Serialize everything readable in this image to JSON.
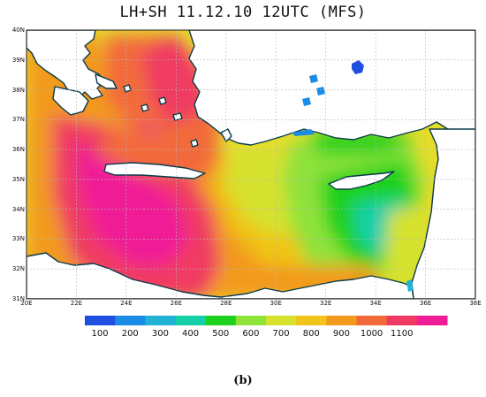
{
  "title": "LH+SH 11.12.10 12UTC (MFS)",
  "panel_label": "(b)",
  "lat_labels": [
    "40N",
    "39N",
    "38N",
    "37N",
    "36N",
    "35N",
    "34N",
    "33N",
    "32N",
    "31N"
  ],
  "lon_labels": [
    "20E",
    "22E",
    "24E",
    "26E",
    "28E",
    "30E",
    "32E",
    "34E",
    "36E",
    "38E"
  ],
  "colorbar": {
    "colors": [
      "#1f4fe0",
      "#1a8ce6",
      "#22b2d4",
      "#14cfa8",
      "#1fd11f",
      "#8fe23a",
      "#d6e22e",
      "#f0c418",
      "#f29a1e",
      "#f26a3a",
      "#f03a62",
      "#f01d96"
    ],
    "labels": [
      "100",
      "200",
      "300",
      "400",
      "500",
      "600",
      "700",
      "800",
      "900",
      "1000",
      "1100"
    ]
  },
  "colors": {
    "sea_base": "#e6dc2c",
    "land": "#ffffff",
    "coast": "#0a3a4a",
    "grid": "#b8b8b8"
  }
}
